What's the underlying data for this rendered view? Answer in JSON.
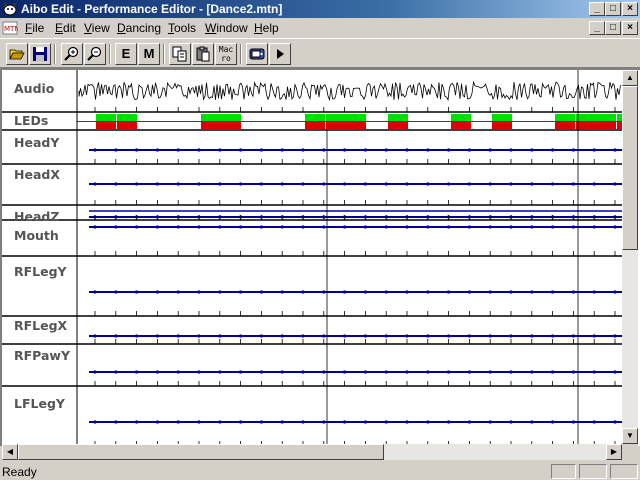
{
  "window": {
    "title": "Aibo Edit - Performance Editor - [Dance2.mtn]",
    "title_color": "#ffffff",
    "titlebar_gradient": [
      "#0a246a",
      "#a6caf0"
    ],
    "buttons": {
      "minimize": "_",
      "maximize": "□",
      "close": "×"
    }
  },
  "menu": {
    "items": [
      {
        "label": "File",
        "key": "F",
        "rest": "ile"
      },
      {
        "label": "Edit",
        "key": "E",
        "rest": "dit"
      },
      {
        "label": "View",
        "key": "V",
        "rest": "iew"
      },
      {
        "label": "Dancing",
        "key": "D",
        "rest": "ancing"
      },
      {
        "label": "Tools",
        "key": "T",
        "rest": "ools"
      },
      {
        "label": "Window",
        "key": "W",
        "rest": "indow"
      },
      {
        "label": "Help",
        "key": "H",
        "rest": "elp"
      }
    ]
  },
  "toolbar": {
    "buttons": [
      {
        "name": "open-button",
        "icon": "folder-open-icon"
      },
      {
        "name": "save-button",
        "icon": "floppy-disk-icon"
      },
      {
        "name": "zoom-in-button",
        "icon": "zoom-in-icon"
      },
      {
        "name": "zoom-out-button",
        "icon": "zoom-out-icon"
      },
      {
        "name": "e-button",
        "label": "E"
      },
      {
        "name": "m-button",
        "label": "M"
      },
      {
        "name": "copy-button",
        "icon": "copy-icon"
      },
      {
        "name": "paste-button",
        "icon": "paste-icon"
      },
      {
        "name": "macro-button",
        "label_line1": "Mac",
        "label_line2": "ro"
      },
      {
        "name": "aibo-button",
        "icon": "aibo-robot-icon"
      },
      {
        "name": "play-button",
        "icon": "play-icon"
      }
    ]
  },
  "tracks": [
    {
      "label": "Audio"
    },
    {
      "label": "LEDs"
    },
    {
      "label": "HeadY"
    },
    {
      "label": "HeadX"
    },
    {
      "label": "HeadZ"
    },
    {
      "label": "Mouth"
    },
    {
      "label": "RFLegY"
    },
    {
      "label": "RFLegX"
    },
    {
      "label": "RFPawY"
    },
    {
      "label": "LFLegY"
    }
  ],
  "colors": {
    "led_on": "#00e000",
    "led_off": "#e00000",
    "keyframe_line": "#000099",
    "waveform": "#000000"
  },
  "status": {
    "text": "Ready"
  }
}
